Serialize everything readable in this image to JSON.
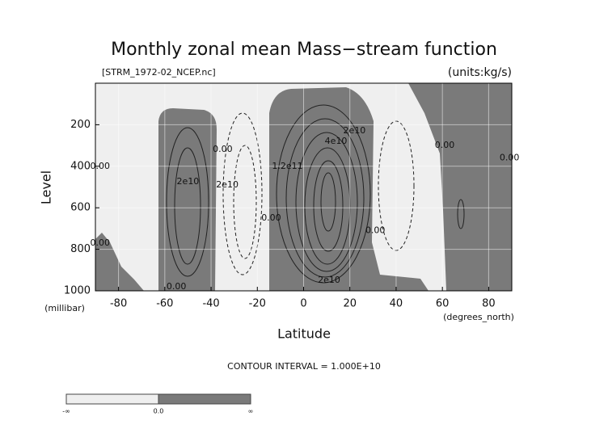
{
  "chart_data": {
    "type": "contour",
    "title": "Monthly zonal mean Mass−stream function",
    "subtitle_left": "[STRM_1972-02_NCEP.nc]",
    "subtitle_right": "(units:kg/s)",
    "y_label": "Level",
    "y_unit": "(millibar)",
    "x_label": "Latitude",
    "x_unit": "(degrees_north)",
    "note": "CONTOUR INTERVAL = 1.000E+10",
    "xlim": [
      -90,
      90
    ],
    "ylim": [
      1000,
      0
    ],
    "xticks": [
      -80,
      -60,
      -40,
      -20,
      0,
      20,
      40,
      60,
      80
    ],
    "yticks": [
      200,
      400,
      600,
      800,
      1000
    ],
    "grid": true,
    "contour_labels": [
      {
        "label": "0.00",
        "x": -88,
        "y": 400
      },
      {
        "label": "0.00",
        "x": -88,
        "y": 770
      },
      {
        "label": "2e10",
        "x": -50,
        "y": 475
      },
      {
        "label": "0.00",
        "x": -55,
        "y": 980
      },
      {
        "label": "0.00",
        "x": -35,
        "y": 320
      },
      {
        "label": "2e10",
        "x": -33,
        "y": 490
      },
      {
        "label": "0.00",
        "x": -14,
        "y": 650
      },
      {
        "label": "1.2e11",
        "x": -7,
        "y": 400
      },
      {
        "label": "4e10",
        "x": 14,
        "y": 280
      },
      {
        "label": "2e10",
        "x": 22,
        "y": 230
      },
      {
        "label": "2e10",
        "x": 11,
        "y": 950
      },
      {
        "label": "0.00",
        "x": 31,
        "y": 710
      },
      {
        "label": "0.00",
        "x": 61,
        "y": 300
      },
      {
        "label": "0.00",
        "x": 89,
        "y": 360
      }
    ],
    "colorbar": {
      "labels": [
        "-∞",
        "0.0",
        "∞"
      ]
    }
  }
}
